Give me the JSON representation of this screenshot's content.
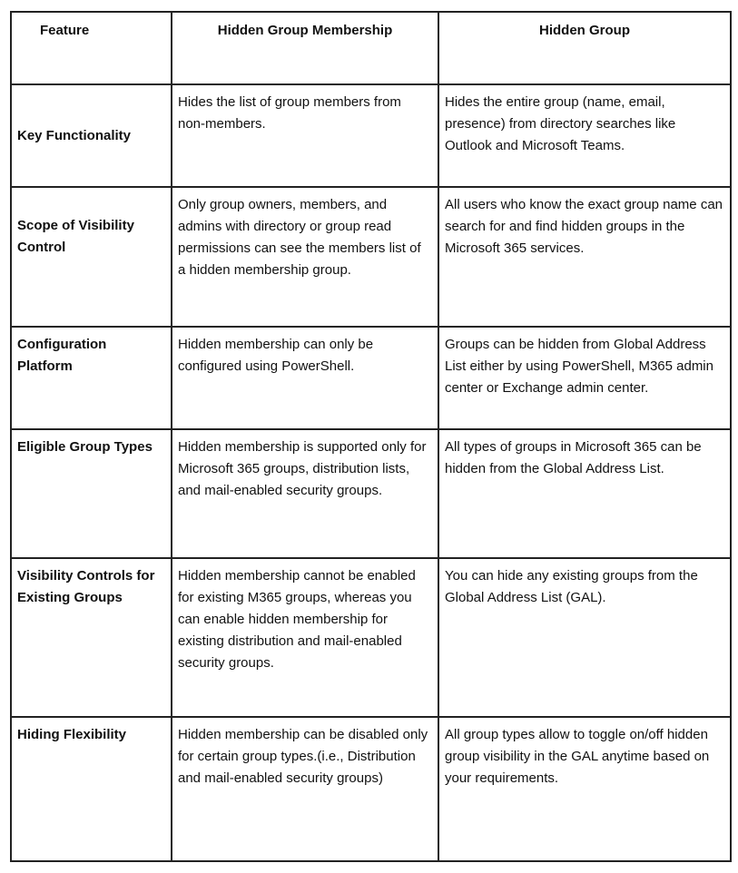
{
  "headers": [
    "Feature",
    "Hidden Group Membership",
    "Hidden Group"
  ],
  "rows": [
    {
      "feature": "Key Functionality",
      "membership": "Hides the list of group members from non-members.",
      "group": "Hides the entire group (name, email, presence) from directory searches like Outlook and Microsoft Teams."
    },
    {
      "feature": "Scope of Visibility Control",
      "membership": "Only group owners, members, and admins with directory or group read permissions can see the members list of a hidden membership group.",
      "group": "All users who know the exact group name can search for and find hidden groups in the Microsoft 365 services."
    },
    {
      "feature": "Configuration Platform",
      "membership": "Hidden membership can only be configured using PowerShell.",
      "group": "Groups can be hidden from Global Address List either by using PowerShell, M365 admin center or Exchange admin center."
    },
    {
      "feature": "Eligible Group Types",
      "membership": "Hidden membership is supported only for Microsoft 365 groups, distribution lists, and mail-enabled security groups.",
      "group": "All types of groups in Microsoft 365 can be hidden from the Global Address List."
    },
    {
      "feature": "Visibility Controls for Existing Groups",
      "membership": "Hidden membership cannot be enabled for existing M365 groups, whereas you can enable hidden membership for existing distribution and mail-enabled security groups.",
      "group": "You can hide any existing groups from the Global Address List (GAL)."
    },
    {
      "feature": "Hiding Flexibility",
      "membership": "Hidden membership can be disabled only for certain group types.(i.e., Distribution and mail-enabled security groups)",
      "group": "All group types allow to toggle on/off hidden group visibility in the GAL anytime based on your requirements."
    }
  ]
}
